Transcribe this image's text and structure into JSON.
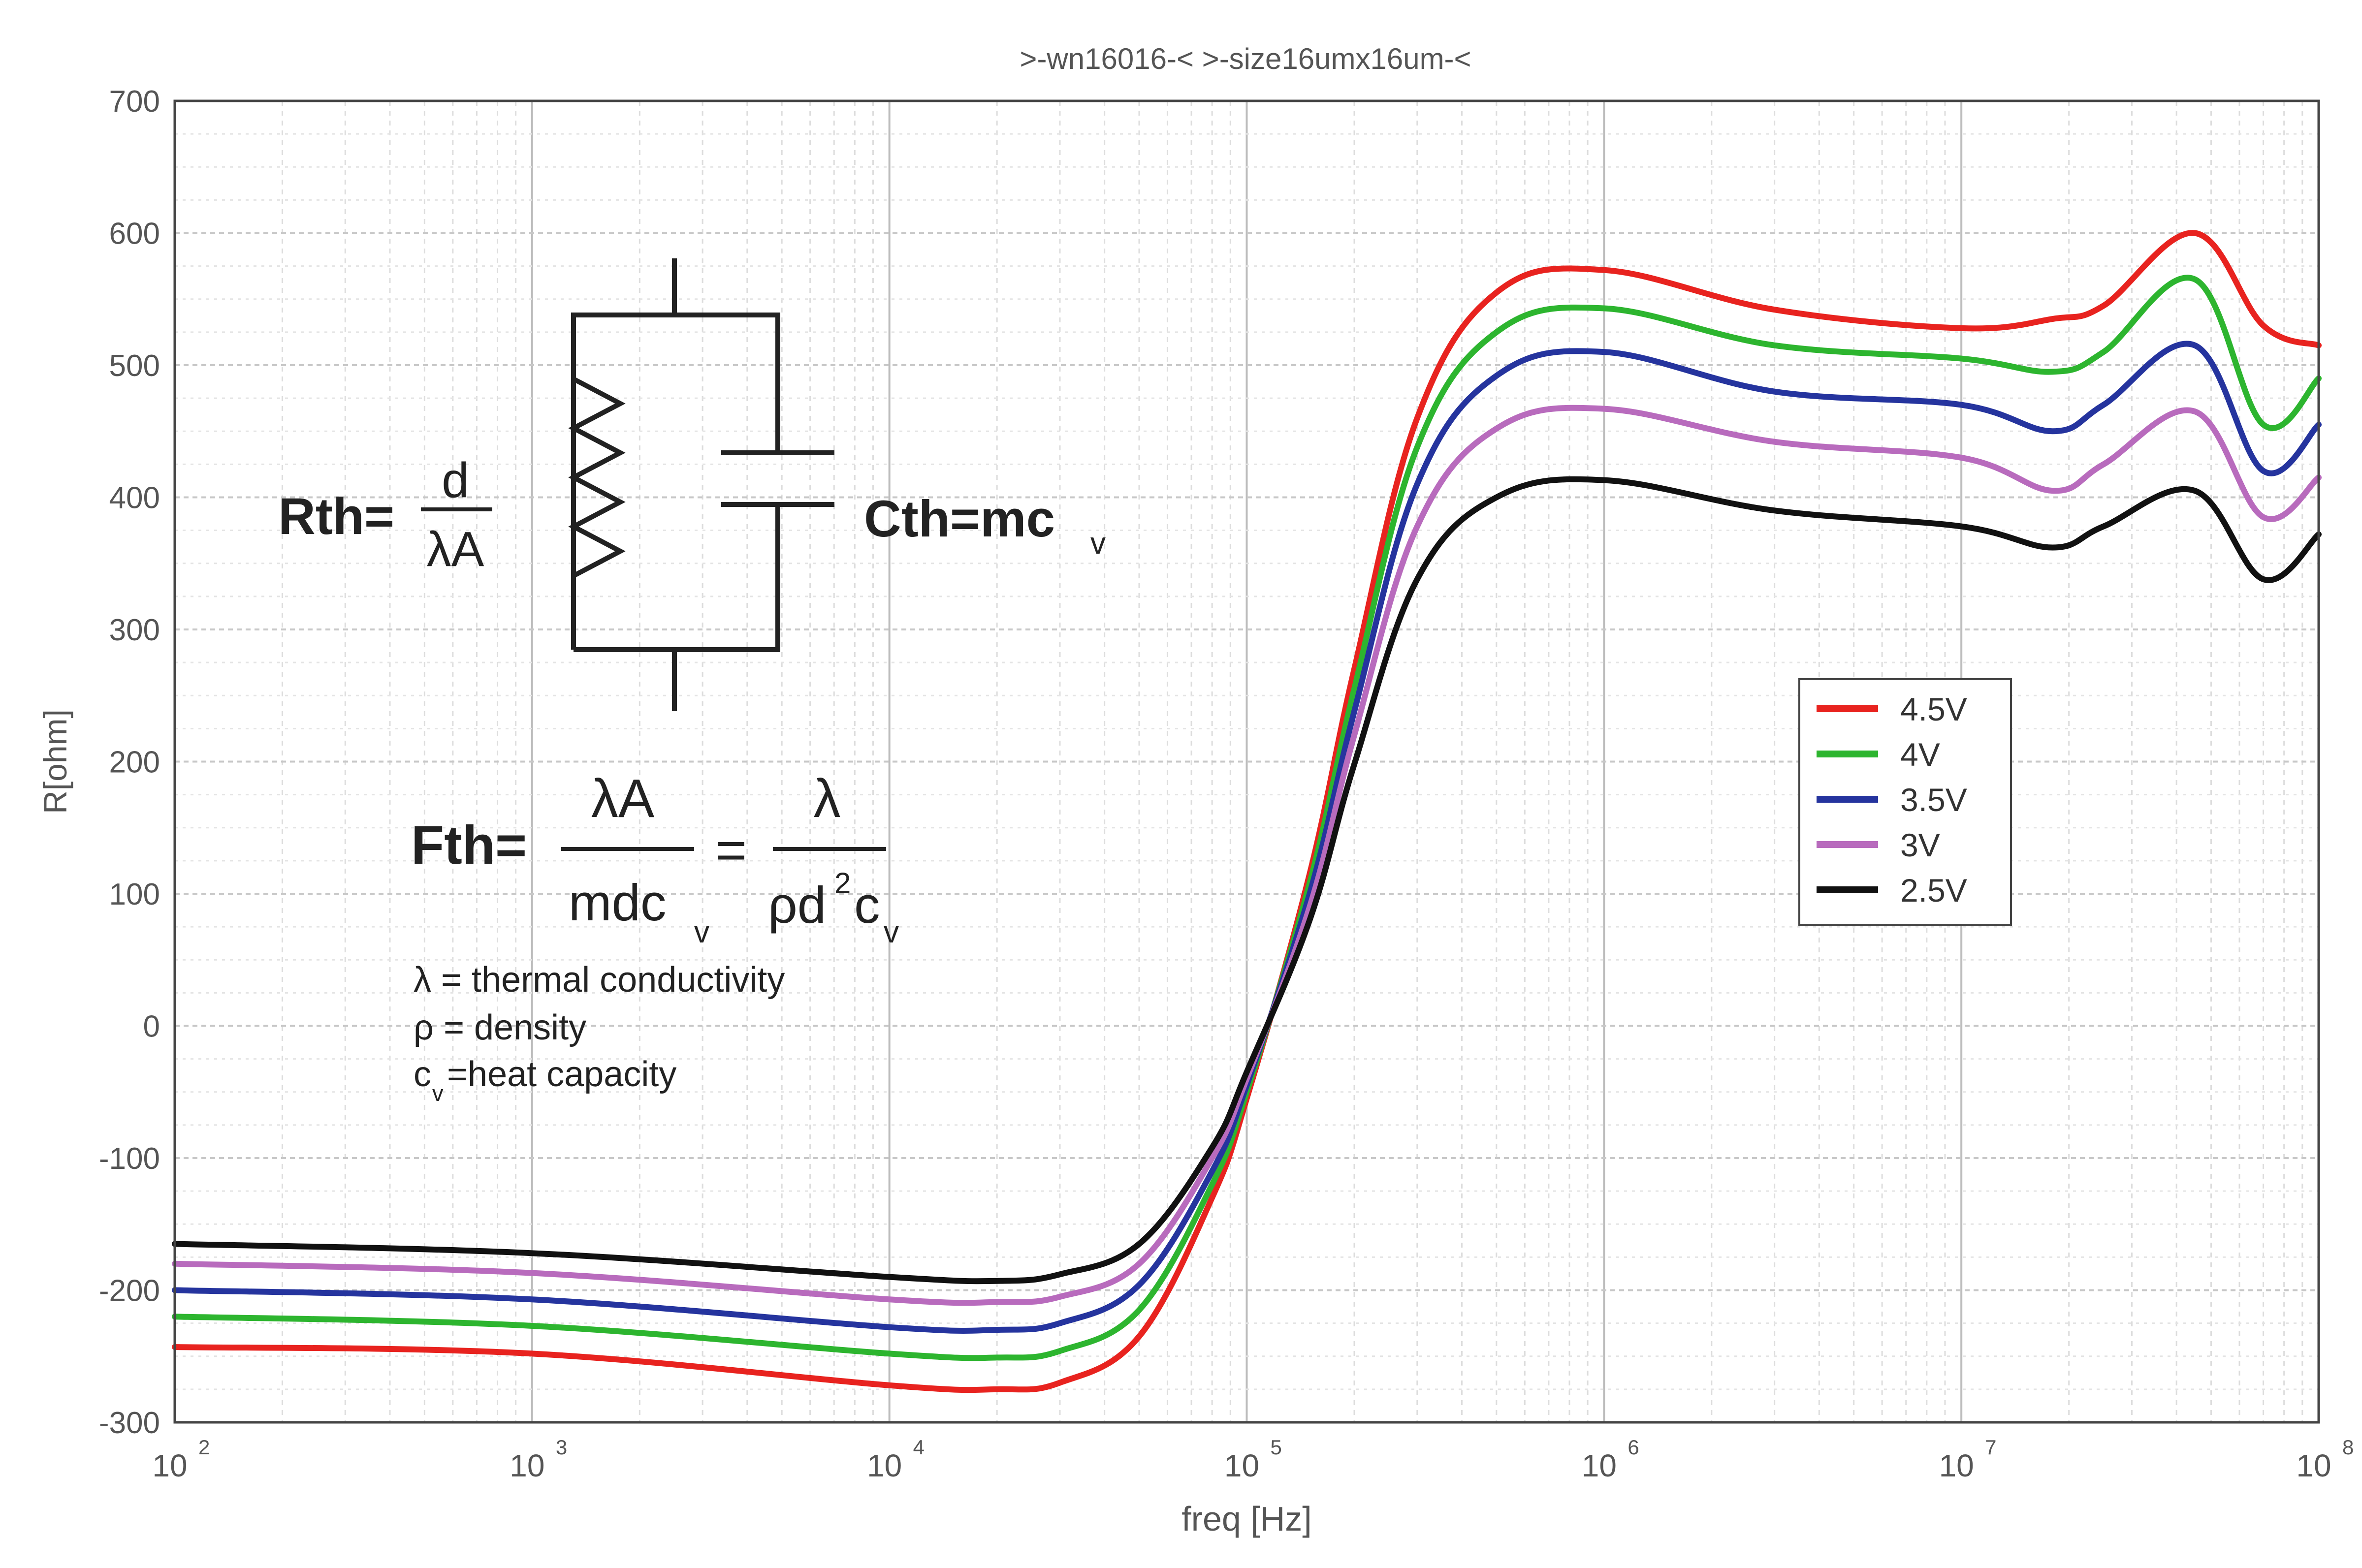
{
  "chart_data": {
    "type": "line",
    "title": ">-wn16016-< >-size16umx16um-<",
    "xlabel": "freq [Hz]",
    "ylabel": "R[ohm]",
    "xscale": "log",
    "xlim": [
      100,
      100000000
    ],
    "ylim": [
      -300,
      700
    ],
    "grid": true,
    "legend_position": "middle-right",
    "x_ticks": [
      {
        "base": "10",
        "exp": "2"
      },
      {
        "base": "10",
        "exp": "3"
      },
      {
        "base": "10",
        "exp": "4"
      },
      {
        "base": "10",
        "exp": "5"
      },
      {
        "base": "10",
        "exp": "6"
      },
      {
        "base": "10",
        "exp": "7"
      },
      {
        "base": "10",
        "exp": "8"
      }
    ],
    "y_ticks": [
      "700",
      "600",
      "500",
      "400",
      "300",
      "200",
      "100",
      "0",
      "-100",
      "-200",
      "-300"
    ],
    "x": [
      100,
      1000,
      10000,
      20000,
      30000,
      50000,
      80000,
      100000,
      150000,
      200000,
      300000,
      500000,
      1000000,
      3000000,
      10000000,
      18000000,
      25000000,
      45000000,
      70000000,
      100000000
    ],
    "series": [
      {
        "name": "4.5V",
        "color": "#e8231f",
        "values": [
          -243,
          -248,
          -272,
          -275,
          -270,
          -235,
          -130,
          -55,
          115,
          270,
          460,
          555,
          572,
          542,
          528,
          535,
          545,
          600,
          530,
          515
        ]
      },
      {
        "name": "4V",
        "color": "#2db52f",
        "values": [
          -220,
          -227,
          -248,
          -251,
          -246,
          -215,
          -120,
          -50,
          108,
          255,
          438,
          525,
          543,
          515,
          505,
          495,
          510,
          565,
          455,
          490
        ]
      },
      {
        "name": "3.5V",
        "color": "#25349e",
        "values": [
          -200,
          -207,
          -228,
          -230,
          -225,
          -196,
          -110,
          -45,
          100,
          238,
          410,
          492,
          510,
          480,
          470,
          450,
          470,
          515,
          420,
          455
        ]
      },
      {
        "name": "3V",
        "color": "#b86bbd",
        "values": [
          -180,
          -187,
          -207,
          -209,
          -205,
          -180,
          -100,
          -40,
          90,
          220,
          378,
          452,
          467,
          442,
          430,
          405,
          425,
          465,
          385,
          415
        ]
      },
      {
        "name": "2.5V",
        "color": "#111111",
        "values": [
          -165,
          -172,
          -190,
          -193,
          -188,
          -165,
          -92,
          -35,
          80,
          198,
          338,
          400,
          413,
          390,
          378,
          362,
          378,
          405,
          338,
          372
        ]
      }
    ],
    "annotation": {
      "rth_lhs": "Rth=",
      "rth_num": "d",
      "rth_den": "λA",
      "cth_main": "Cth=mc",
      "cth_sub": "v",
      "fth_lhs": "Fth=",
      "fth_num1": "λA",
      "fth_den1": "mdc",
      "fth_den1_sub": "v",
      "fth_eq": "=",
      "fth_num2": "λ",
      "fth_den2_a": "ρd",
      "fth_den2_sup": "2",
      "fth_den2_b": "c",
      "fth_den2_sub": "v",
      "def_lambda": "λ = thermal conductivity",
      "def_rho": "ρ = density",
      "def_cv_c": "c",
      "def_cv_sub": "v",
      "def_cv_rest": "=heat capacity"
    }
  }
}
